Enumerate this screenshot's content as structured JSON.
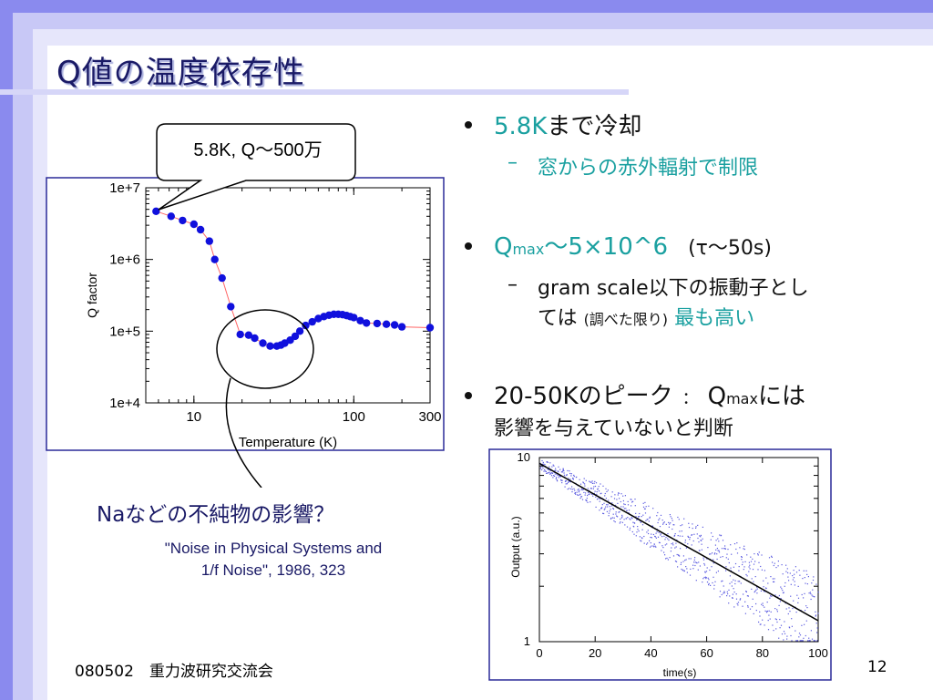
{
  "title": "Q値の温度依存性",
  "bullets": {
    "b1_main": "5.8K",
    "b1_rest": "まで冷却",
    "b1_sub": "窓からの赤外輻射で制限",
    "b2_q": "Q",
    "b2_sub": "max",
    "b2_val": "〜5×10^6",
    "b2_tau": "(τ〜50s)",
    "b2_line1": "gram scale以下の振動子とし",
    "b2_line2a": "ては",
    "b2_line2b": "(調べた限り)",
    "b2_line2c": "最も高い",
    "b3_line1a": "20-50Kのピーク",
    "b3_colon": "：",
    "b3_q": "Q",
    "b3_sub": "max",
    "b3_line1b": "には",
    "b3_line2": "影響を与えていないと判断"
  },
  "callout": "5.8K, Q〜500万",
  "na_note": "Naなどの不純物の影響？",
  "reference": {
    "line1": "\"Noise in Physical Systems and",
    "line2": "1/f Noise\", 1986, 323"
  },
  "footer": {
    "left": "080502　重力波研究交流会",
    "page": "12"
  },
  "colors": {
    "title": "#1a1a66",
    "accent": "#1aa0a0",
    "points": "#1010dd",
    "line": "#ff6666",
    "frame": "#2a2a99",
    "deco": "#9090ee"
  },
  "chart_data": [
    {
      "type": "scatter",
      "title": "",
      "xlabel": "Temperature (K)",
      "ylabel": "Q factor",
      "xscale": "log",
      "yscale": "log",
      "xlim": [
        5,
        300
      ],
      "ylim": [
        10000,
        10000000
      ],
      "xticks": [
        {
          "v": 10,
          "label": "10"
        },
        {
          "v": 100,
          "label": "100"
        },
        {
          "v": 300,
          "label": "300"
        }
      ],
      "yticks": [
        {
          "v": 10000,
          "label": "1e+4"
        },
        {
          "v": 100000,
          "label": "1e+5"
        },
        {
          "v": 1000000,
          "label": "1e+6"
        },
        {
          "v": 10000000,
          "label": "1e+7"
        }
      ],
      "grid": false,
      "connected": true,
      "x": [
        5.8,
        7.2,
        8.5,
        10,
        11,
        12.5,
        13.5,
        15,
        17,
        19.5,
        22,
        24,
        27,
        30,
        33,
        35,
        37,
        40,
        43,
        46,
        50,
        55,
        60,
        65,
        70,
        75,
        80,
        85,
        90,
        95,
        100,
        110,
        120,
        140,
        160,
        180,
        200,
        300
      ],
      "y": [
        4700000,
        4000000,
        3500000,
        3100000,
        2600000,
        1800000,
        1000000,
        550000,
        220000,
        90000,
        88000,
        80000,
        68000,
        62000,
        62000,
        64000,
        68000,
        75000,
        85000,
        100000,
        120000,
        135000,
        150000,
        160000,
        167000,
        172000,
        172000,
        170000,
        165000,
        160000,
        155000,
        140000,
        130000,
        128000,
        125000,
        122000,
        115000,
        112000
      ]
    },
    {
      "type": "line",
      "title": "",
      "xlabel": "time(s)",
      "ylabel": "Output (a.u.)",
      "yscale": "log",
      "xlim": [
        0,
        100
      ],
      "ylim": [
        1,
        10
      ],
      "xticks": [
        0,
        20,
        40,
        60,
        80,
        100
      ],
      "yticks": [
        {
          "v": 1,
          "label": "1"
        },
        {
          "v": 10,
          "label": "10"
        }
      ],
      "grid": false,
      "fit": {
        "x": [
          0,
          100
        ],
        "y": [
          9.3,
          1.3
        ]
      },
      "noise": "ringdown data scatter around the exponential fit"
    }
  ]
}
